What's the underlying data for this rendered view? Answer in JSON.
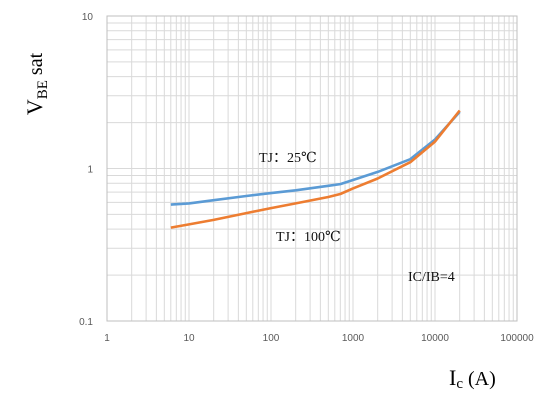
{
  "chart_data": {
    "type": "line",
    "x_scale": "log",
    "y_scale": "log",
    "xlim": [
      1,
      100000
    ],
    "ylim": [
      0.1,
      10
    ],
    "grid": true,
    "ylabel": {
      "main": "V",
      "sub": "BE",
      "suffix": " sat"
    },
    "xlabel": {
      "main": "I",
      "sub": "c",
      "suffix": " (A)"
    },
    "x_tick_labels": [
      "1",
      "10",
      "100",
      "1000",
      "10000",
      "100000"
    ],
    "y_tick_labels": [
      "0.1",
      "1",
      "10"
    ],
    "series": [
      {
        "name": "TJ：25℃",
        "color": "#5B9BD5",
        "x": [
          6,
          10,
          20,
          50,
          100,
          200,
          500,
          700,
          1000,
          2000,
          5000,
          10000,
          20000
        ],
        "y": [
          0.58,
          0.59,
          0.62,
          0.66,
          0.69,
          0.72,
          0.77,
          0.79,
          0.84,
          0.95,
          1.15,
          1.55,
          2.35
        ]
      },
      {
        "name": "TJ：100℃",
        "color": "#ED7D31",
        "x": [
          6,
          10,
          20,
          50,
          100,
          200,
          500,
          700,
          1000,
          2000,
          5000,
          10000,
          20000
        ],
        "y": [
          0.41,
          0.43,
          0.46,
          0.51,
          0.55,
          0.59,
          0.65,
          0.68,
          0.74,
          0.86,
          1.1,
          1.5,
          2.4
        ]
      }
    ],
    "annotations": [
      "TJ：25℃",
      "TJ：100℃",
      "IC/IB=4"
    ]
  }
}
